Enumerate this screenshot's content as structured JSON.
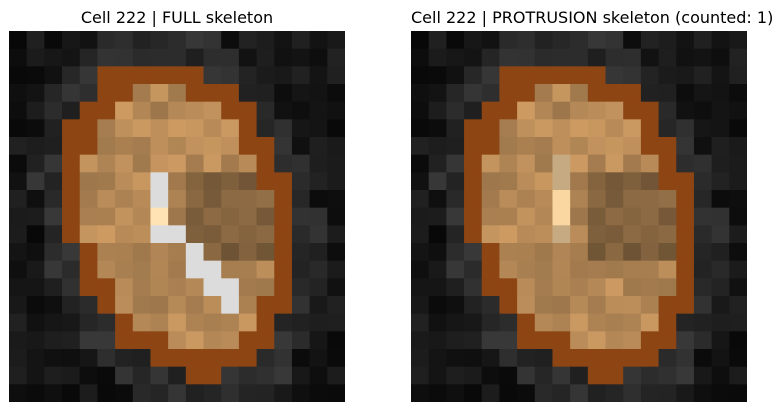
{
  "panels": [
    {
      "id": "full",
      "title": "Cell 222 | FULL skeleton",
      "skeleton_visible": true
    },
    {
      "id": "protrusion",
      "title": "Cell 222 | PROTRUSION skeleton (counted: 1)",
      "skeleton_visible": false
    }
  ],
  "colors": {
    "background": "#0b0b0b",
    "outline": "#8e4514",
    "skeleton": "#dcdcdc",
    "skeleton_node": "#ffe3b5",
    "highlight": "#fad7a0"
  }
}
